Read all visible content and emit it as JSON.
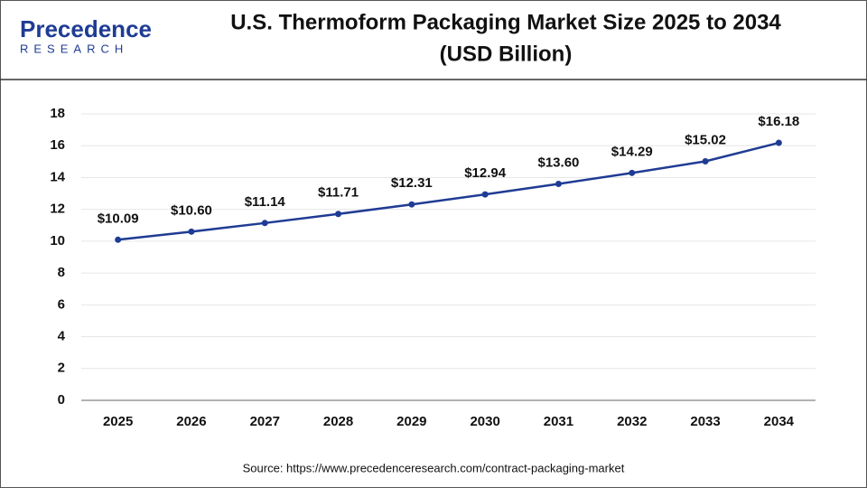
{
  "logo": {
    "name": "Precedence",
    "tagline": "RESEARCH"
  },
  "source": "Source: https://www.precedenceresearch.com/contract-packaging-market",
  "chart_data": {
    "type": "line",
    "title": "U.S. Thermoform Packaging Market Size 2025 to 2034",
    "subtitle": "(USD Billion)",
    "categories": [
      "2025",
      "2026",
      "2027",
      "2028",
      "2029",
      "2030",
      "2031",
      "2032",
      "2033",
      "2034"
    ],
    "values": [
      10.09,
      10.6,
      11.14,
      11.71,
      12.31,
      12.94,
      13.6,
      14.29,
      15.02,
      16.18
    ],
    "value_labels": [
      "$10.09",
      "$10.60",
      "$11.14",
      "$11.71",
      "$12.31",
      "$12.94",
      "$13.60",
      "$14.29",
      "$15.02",
      "$16.18"
    ],
    "color": "#1f3c94",
    "ylim": [
      0,
      18
    ],
    "yticks": [
      0,
      2,
      4,
      6,
      8,
      10,
      12,
      14,
      16,
      18
    ],
    "grid": true
  }
}
